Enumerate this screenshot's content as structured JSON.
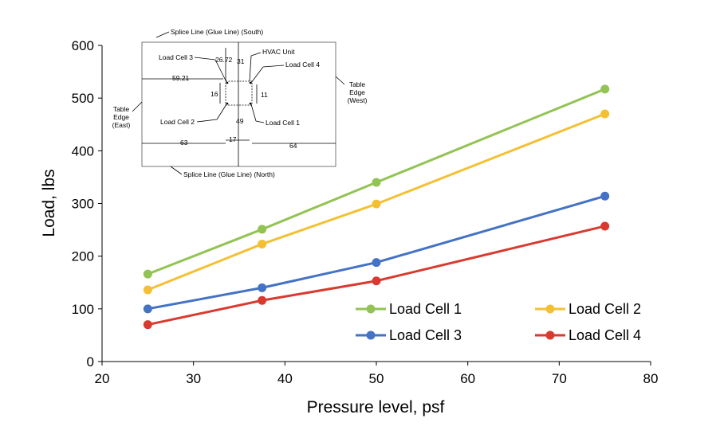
{
  "chart_data": {
    "type": "line",
    "title": "",
    "xlabel": "Pressure level, psf",
    "ylabel": "Load, lbs",
    "xlim": [
      20,
      80
    ],
    "ylim": [
      0,
      600
    ],
    "xticks": [
      "20",
      "30",
      "40",
      "50",
      "60",
      "70",
      "80"
    ],
    "yticks": [
      "0",
      "100",
      "200",
      "300",
      "400",
      "500",
      "600"
    ],
    "x": [
      25,
      37.5,
      50,
      75
    ],
    "grid": false,
    "legend_position": "bottom-right",
    "series": [
      {
        "name": "Load Cell 1",
        "color": "#92c353",
        "values": [
          166,
          251,
          340,
          517
        ]
      },
      {
        "name": "Load Cell 2",
        "color": "#f4c033",
        "values": [
          136,
          223,
          299,
          470
        ]
      },
      {
        "name": "Load Cell 3",
        "color": "#4472c4",
        "values": [
          100,
          140,
          188,
          314
        ]
      },
      {
        "name": "Load Cell 4",
        "color": "#d93a2f",
        "values": [
          70,
          116,
          153,
          257
        ]
      }
    ]
  },
  "inset": {
    "splice_south": "Splice Line (Glue Line) (South)",
    "splice_north": "Splice Line (Glue Line) (North)",
    "hvac_unit": "HVAC Unit",
    "load_cell_1": "Load Cell 1",
    "load_cell_2": "Load Cell 2",
    "load_cell_3": "Load Cell 3",
    "load_cell_4": "Load Cell 4",
    "table_edge_east": [
      "Table",
      "Edge",
      "(East)"
    ],
    "table_edge_west": [
      "Table",
      "Edge",
      "(West)"
    ],
    "dim_26_72": "26.72",
    "dim_31": "31",
    "dim_59_21": "59.21",
    "dim_16": "16",
    "dim_11": "11",
    "dim_49": "49",
    "dim_63": "63",
    "dim_17": "17",
    "dim_64": "64"
  }
}
